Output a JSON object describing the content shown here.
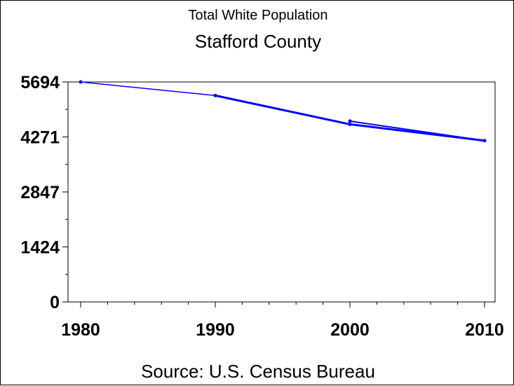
{
  "chart_data": {
    "type": "line",
    "title": "Total White Population",
    "subtitle": "Stafford County",
    "footnote": "Source: U.S. Census Bureau",
    "xlabel": "",
    "ylabel": "",
    "x": [
      1980,
      1990,
      2000,
      2010
    ],
    "x_tick_labels": [
      "1980",
      "1990",
      "2000",
      "2010"
    ],
    "y_tick_labels": [
      "0",
      "1424",
      "2847",
      "4271",
      "5694"
    ],
    "y_ticks": [
      0,
      1424,
      2847,
      4271,
      5694
    ],
    "xlim": [
      1980,
      2010
    ],
    "ylim": [
      0,
      5694
    ],
    "grid": false,
    "legend": "none",
    "series": [
      {
        "values": [
          5694,
          5343,
          4598,
          4175
        ],
        "color": "#0000ff"
      }
    ],
    "extra_points": [
      {
        "x": 2000,
        "y": 4680
      }
    ]
  }
}
